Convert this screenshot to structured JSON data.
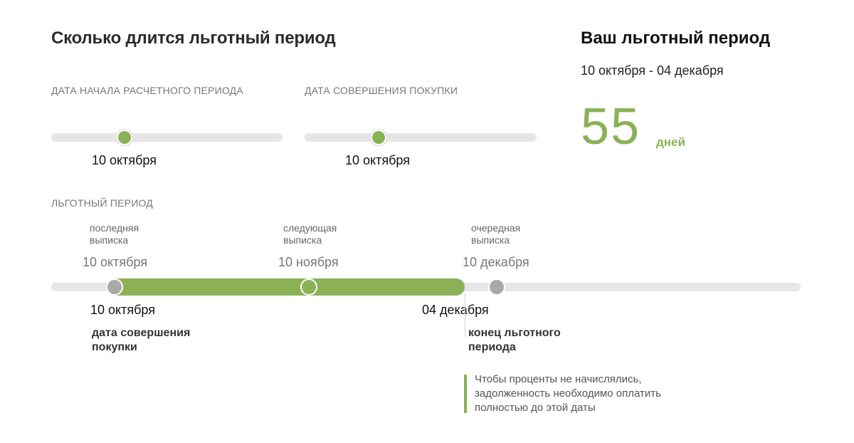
{
  "header": {
    "title": "Сколько длится льготный период"
  },
  "summary": {
    "title": "Ваш льготный период",
    "range": "10 октября - 04 декабря",
    "days_value": "55",
    "days_unit": "дней"
  },
  "sliders": {
    "billing_start": {
      "label": "ДАТА НАЧАЛА РАСЧЕТНОГО ПЕРИОДА",
      "value_text": "10 октября",
      "position_fraction": 0.32
    },
    "purchase_date": {
      "label": "ДАТА СОВЕРШЕНИЯ ПОКУПКИ",
      "value_text": "10 октября",
      "position_fraction": 0.32
    }
  },
  "timeline": {
    "label": "ЛЬГОТНЫЙ ПЕРИОД",
    "milestones": [
      {
        "caption_line1": "последняя",
        "caption_line2": "выписка",
        "date": "10 октября"
      },
      {
        "caption_line1": "следующая",
        "caption_line2": "выписка",
        "date": "10 ноября"
      },
      {
        "caption_line1": "очередная",
        "caption_line2": "выписка",
        "date": "10 декабря"
      }
    ],
    "start_date": "10 октября",
    "end_date": "04 декабря",
    "start_note_line1": "дата совершения",
    "start_note_line2": "покупки",
    "end_note_line1": "конец льготного",
    "end_note_line2": "периода",
    "payment_note": "Чтобы проценты не начислялись, задолженность необходимо оплатить полностью до этой даты"
  },
  "colors": {
    "accent": "#8bb157",
    "track": "#e6e6e6",
    "knob_gray": "#a9a9a9"
  }
}
